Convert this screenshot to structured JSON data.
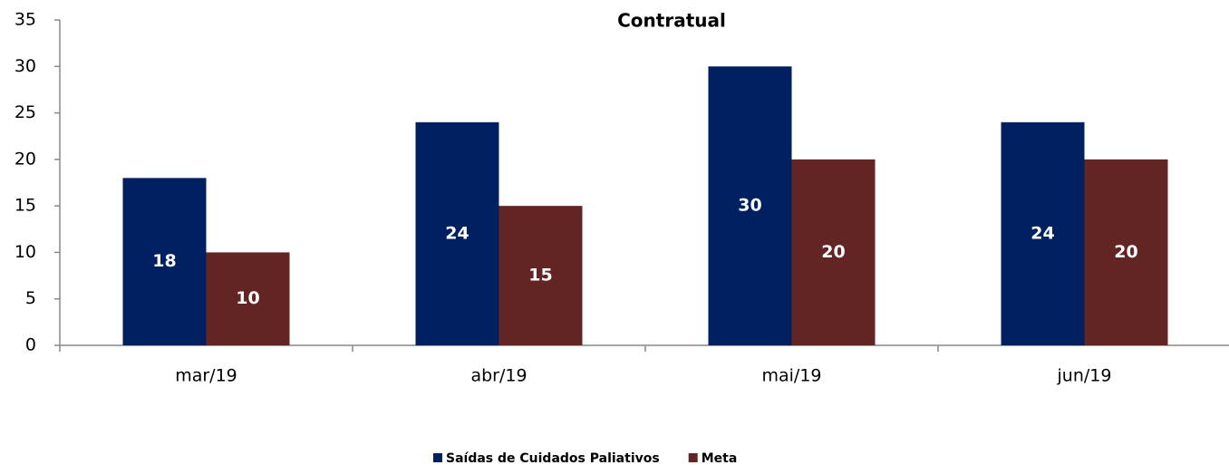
{
  "chart_data": {
    "type": "bar",
    "title": "Contratual",
    "categories": [
      "mar/19",
      "abr/19",
      "mai/19",
      "jun/19"
    ],
    "series": [
      {
        "name": "Saídas de Cuidados Paliativos",
        "color": "#002060",
        "values": [
          18,
          24,
          30,
          24
        ]
      },
      {
        "name": "Meta",
        "color": "#632523",
        "values": [
          10,
          15,
          20,
          20
        ]
      }
    ],
    "ylim": [
      0,
      35
    ],
    "yticks": [
      0,
      5,
      10,
      15,
      20,
      25,
      30,
      35
    ],
    "grid": false,
    "legend": "bottom"
  }
}
